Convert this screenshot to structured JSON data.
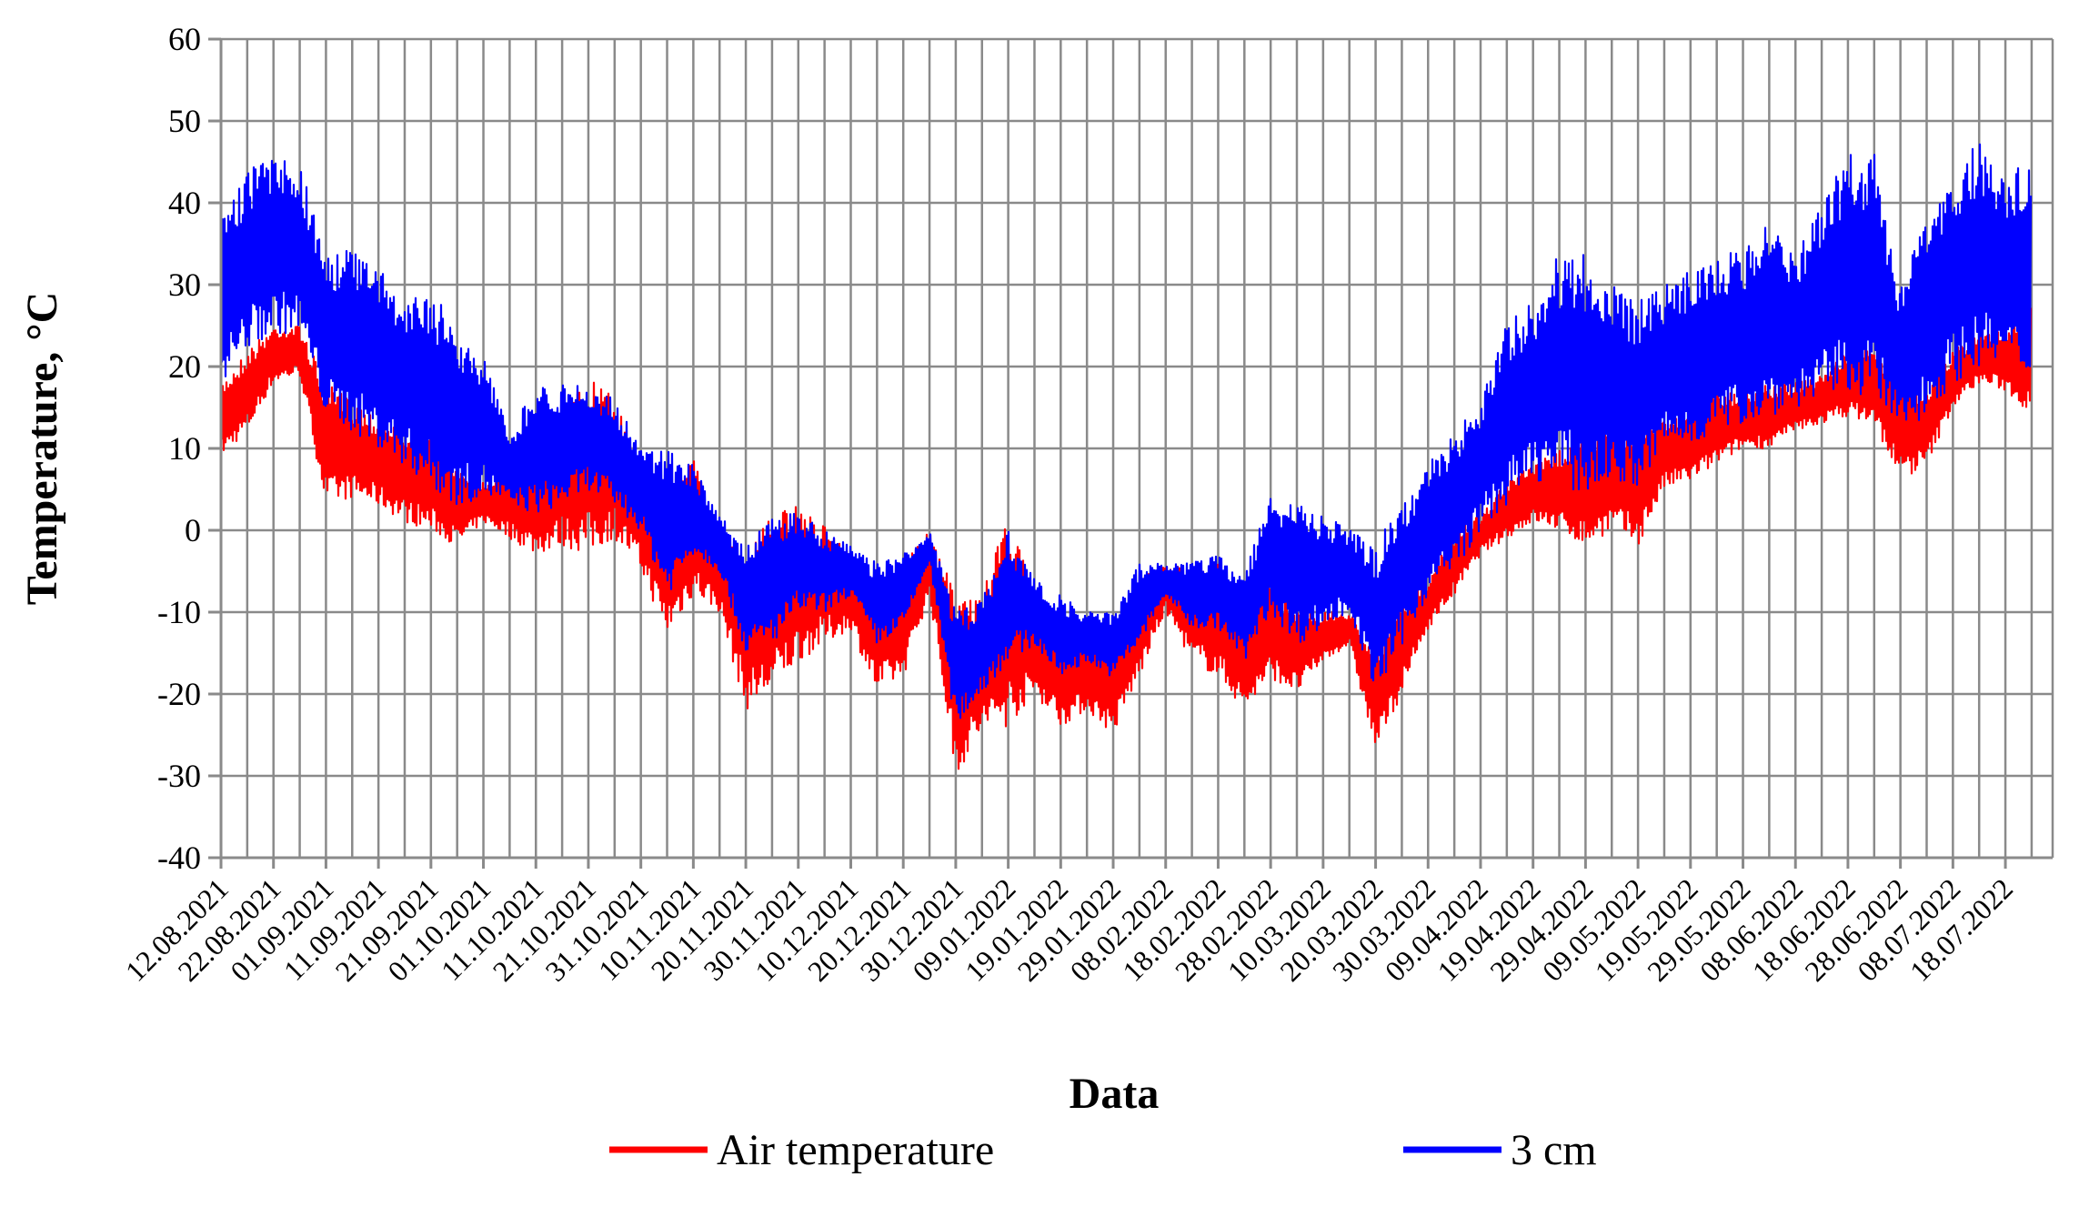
{
  "chart_data": {
    "type": "line",
    "title": "",
    "xlabel": "Data",
    "ylabel": "Temperature, °C",
    "ylim": [
      -40,
      60
    ],
    "yticks": [
      60,
      50,
      40,
      30,
      20,
      10,
      0,
      -10,
      -20,
      -30,
      -40
    ],
    "grid": true,
    "legend_placement": "bottom",
    "x_tick_labels": [
      "12.08.2021",
      "22.08.2021",
      "01.09.2021",
      "11.09.2021",
      "21.09.2021",
      "01.10.2021",
      "11.10.2021",
      "21.10.2021",
      "31.10.2021",
      "10.11.2021",
      "20.11.2021",
      "30.11.2021",
      "10.12.2021",
      "20.12.2021",
      "30.12.2021",
      "09.01.2022",
      "19.01.2022",
      "29.01.2022",
      "08.02.2022",
      "18.02.2022",
      "28.02.2022",
      "10.03.2022",
      "20.03.2022",
      "30.03.2022",
      "09.04.2022",
      "19.04.2022",
      "29.04.2022",
      "09.05.2022",
      "19.05.2022",
      "29.05.2022",
      "08.06.2022",
      "18.06.2022",
      "28.06.2022",
      "08.07.2022",
      "18.07.2022"
    ],
    "series": [
      {
        "name": "Air temperature",
        "color": "#ff0000",
        "x": [
          "12.08.2021",
          "17.08.2021",
          "22.08.2021",
          "27.08.2021",
          "01.09.2021",
          "06.09.2021",
          "11.09.2021",
          "16.09.2021",
          "21.09.2021",
          "26.09.2021",
          "01.10.2021",
          "06.10.2021",
          "11.10.2021",
          "16.10.2021",
          "21.10.2021",
          "26.10.2021",
          "31.10.2021",
          "05.11.2021",
          "10.11.2021",
          "15.11.2021",
          "20.11.2021",
          "25.11.2021",
          "30.11.2021",
          "05.12.2021",
          "10.12.2021",
          "15.12.2021",
          "20.12.2021",
          "25.12.2021",
          "30.12.2021",
          "04.01.2022",
          "09.01.2022",
          "14.01.2022",
          "19.01.2022",
          "24.01.2022",
          "29.01.2022",
          "03.02.2022",
          "08.02.2022",
          "13.02.2022",
          "18.02.2022",
          "23.02.2022",
          "28.02.2022",
          "05.03.2022",
          "10.03.2022",
          "15.03.2022",
          "20.03.2022",
          "25.03.2022",
          "30.03.2022",
          "04.04.2022",
          "09.04.2022",
          "14.04.2022",
          "19.04.2022",
          "24.04.2022",
          "29.04.2022",
          "04.05.2022",
          "09.05.2022",
          "14.05.2022",
          "19.05.2022",
          "24.05.2022",
          "29.05.2022",
          "03.06.2022",
          "08.06.2022",
          "13.06.2022",
          "18.06.2022",
          "23.06.2022",
          "28.06.2022",
          "03.07.2022",
          "08.07.2022",
          "13.07.2022",
          "18.07.2022",
          "23.07.2022"
        ],
        "min": [
          9,
          12,
          18,
          19,
          3,
          4,
          3,
          1,
          0,
          -2,
          1,
          -1,
          -3,
          -2,
          -3,
          -1,
          -5,
          -13,
          -8,
          -10,
          -22,
          -20,
          -16,
          -14,
          -12,
          -20,
          -18,
          -8,
          -30,
          -25,
          -24,
          -20,
          -24,
          -22,
          -25,
          -18,
          -10,
          -16,
          -18,
          -22,
          -18,
          -20,
          -16,
          -14,
          -27,
          -20,
          -12,
          -8,
          -3,
          -1,
          1,
          0,
          -2,
          0,
          -2,
          5,
          6,
          8,
          10,
          10,
          12,
          13,
          14,
          13,
          6,
          8,
          15,
          18,
          17,
          14
        ],
        "max": [
          18,
          22,
          25,
          25,
          18,
          16,
          14,
          13,
          12,
          8,
          6,
          8,
          10,
          14,
          19,
          16,
          8,
          5,
          9,
          0,
          -2,
          2,
          3,
          1,
          -3,
          -5,
          -4,
          0,
          -8,
          -8,
          2,
          -8,
          -10,
          -12,
          -12,
          -6,
          -4,
          -5,
          -4,
          -10,
          -6,
          -9,
          -10,
          -10,
          -14,
          -8,
          -6,
          0,
          2,
          6,
          8,
          10,
          12,
          13,
          14,
          14,
          15,
          17,
          17,
          18,
          18,
          19,
          22,
          22,
          20,
          17,
          22,
          24,
          25,
          28
        ]
      },
      {
        "name": "3 cm",
        "color": "#0000ff",
        "x": [
          "12.08.2021",
          "17.08.2021",
          "22.08.2021",
          "27.08.2021",
          "01.09.2021",
          "06.09.2021",
          "11.09.2021",
          "16.09.2021",
          "21.09.2021",
          "26.09.2021",
          "01.10.2021",
          "06.10.2021",
          "11.10.2021",
          "16.10.2021",
          "21.10.2021",
          "26.10.2021",
          "31.10.2021",
          "05.11.2021",
          "10.11.2021",
          "15.11.2021",
          "20.11.2021",
          "25.11.2021",
          "30.11.2021",
          "05.12.2021",
          "10.12.2021",
          "15.12.2021",
          "20.12.2021",
          "25.12.2021",
          "30.12.2021",
          "04.01.2022",
          "09.01.2022",
          "14.01.2022",
          "19.01.2022",
          "24.01.2022",
          "29.01.2022",
          "03.02.2022",
          "08.02.2022",
          "13.02.2022",
          "18.02.2022",
          "23.02.2022",
          "28.02.2022",
          "05.03.2022",
          "10.03.2022",
          "15.03.2022",
          "20.03.2022",
          "25.03.2022",
          "30.03.2022",
          "04.04.2022",
          "09.04.2022",
          "14.04.2022",
          "19.04.2022",
          "24.04.2022",
          "29.04.2022",
          "04.05.2022",
          "09.05.2022",
          "14.05.2022",
          "19.05.2022",
          "24.05.2022",
          "29.05.2022",
          "03.06.2022",
          "08.06.2022",
          "13.06.2022",
          "18.06.2022",
          "23.06.2022",
          "28.06.2022",
          "03.07.2022",
          "08.07.2022",
          "13.07.2022",
          "18.07.2022",
          "23.07.2022"
        ],
        "min": [
          18,
          22,
          24,
          24,
          14,
          12,
          10,
          8,
          5,
          3,
          4,
          3,
          2,
          3,
          5,
          3,
          0,
          -8,
          -3,
          -5,
          -15,
          -14,
          -10,
          -10,
          -8,
          -14,
          -12,
          -4,
          -24,
          -20,
          -16,
          -14,
          -18,
          -16,
          -18,
          -14,
          -8,
          -12,
          -12,
          -16,
          -10,
          -14,
          -12,
          -10,
          -20,
          -14,
          -8,
          -5,
          0,
          3,
          6,
          6,
          4,
          6,
          5,
          10,
          10,
          12,
          13,
          14,
          15,
          16,
          17,
          16,
          12,
          14,
          18,
          20,
          20,
          18
        ],
        "max": [
          38,
          44,
          46,
          45,
          34,
          35,
          32,
          28,
          30,
          24,
          22,
          12,
          18,
          18,
          18,
          16,
          10,
          10,
          8,
          2,
          -2,
          2,
          2,
          0,
          -2,
          -4,
          -3,
          0,
          -10,
          -8,
          0,
          -6,
          -8,
          -10,
          -10,
          -4,
          -4,
          -4,
          -3,
          -5,
          4,
          4,
          2,
          0,
          -2,
          4,
          8,
          12,
          16,
          26,
          28,
          34,
          34,
          30,
          28,
          30,
          32,
          34,
          34,
          38,
          34,
          40,
          46,
          46,
          30,
          38,
          44,
          48,
          44,
          46
        ]
      }
    ]
  }
}
